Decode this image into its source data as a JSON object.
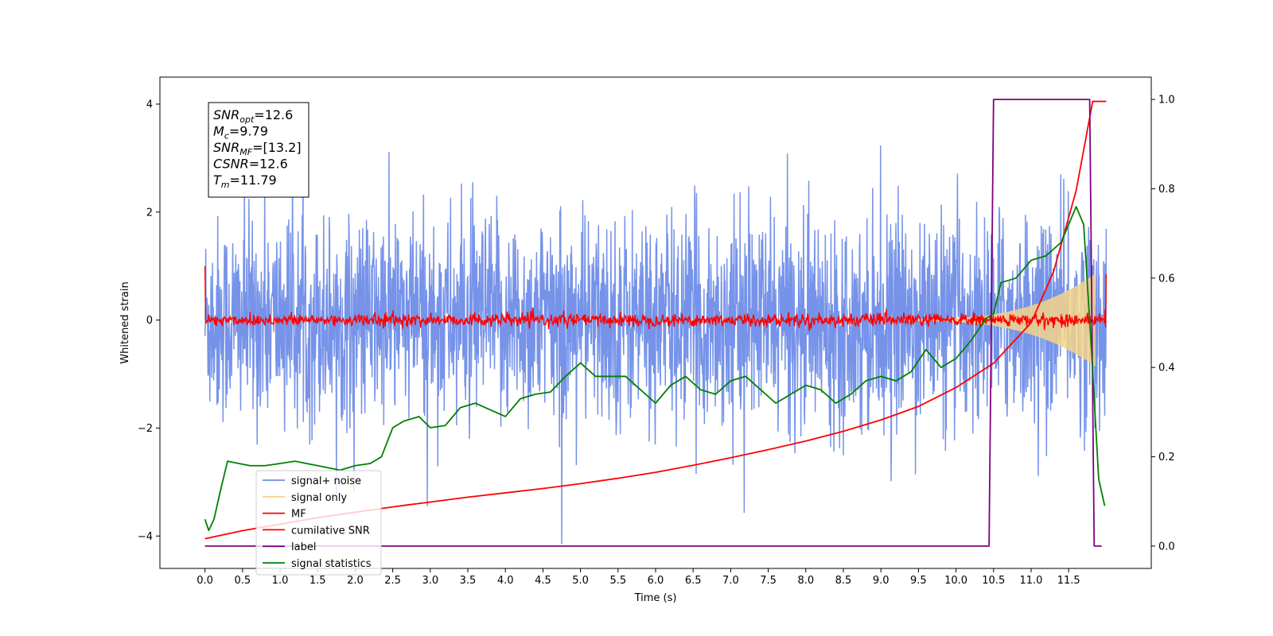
{
  "chart_data": {
    "type": "line",
    "title": "",
    "xlabel": "Time (s)",
    "ylabel": "Whitened strain",
    "y2label": "",
    "xlim": [
      -0.6,
      12.6
    ],
    "ylim": [
      -4.6,
      4.5
    ],
    "y2lim": [
      -0.05,
      1.05
    ],
    "xticks": [
      "0.0",
      "0.5",
      "1.0",
      "1.5",
      "2.0",
      "2.5",
      "3.0",
      "3.5",
      "4.0",
      "4.5",
      "5.0",
      "5.5",
      "6.0",
      "6.5",
      "7.0",
      "7.5",
      "8.0",
      "8.5",
      "9.0",
      "9.5",
      "10.0",
      "10.5",
      "11.0",
      "11.5"
    ],
    "yticks": [
      "4",
      "2",
      "0",
      "−2",
      "−4"
    ],
    "y2ticks": [
      "1.0",
      "0.8",
      "0.6",
      "0.4",
      "0.2",
      "0.0"
    ],
    "grid": false,
    "legend": {
      "placement": "lower-left",
      "entries": [
        {
          "name": "signal+ noise",
          "color": "#6f8de8"
        },
        {
          "name": "signal only",
          "color": "#f5d48a"
        },
        {
          "name": "MF",
          "color": "#ff0000"
        },
        {
          "name": "cumilative SNR",
          "color": "#ff0000"
        },
        {
          "name": "label",
          "color": "#800080"
        },
        {
          "name": "signal statistics",
          "color": "#008000"
        }
      ]
    },
    "annotation": [
      {
        "sym": "SNR",
        "sub": "opt",
        "val": "=12.6"
      },
      {
        "sym": "M",
        "sub": "c",
        "val": "=9.79"
      },
      {
        "sym": "SNR",
        "sub": "MF",
        "val": "=[13.2]"
      },
      {
        "sym": "CSNR",
        "sub": "",
        "val": "=12.6"
      },
      {
        "sym": "T",
        "sub": "m",
        "val": "=11.79"
      }
    ],
    "series": [
      {
        "name": "signal+ noise",
        "axis": "left",
        "color": "#6f8de8",
        "description_of_values": "white noise, amplitude mostly within [-2.6, 2.6], occasional peaks near +/-4",
        "t_start": 0.0,
        "t_end": 12.0,
        "envelope": [
          2.6,
          4.05
        ],
        "spike": {
          "x": 4.75,
          "y": -4.15
        }
      },
      {
        "name": "signal only",
        "axis": "left",
        "color": "#f5d48a",
        "t_start": 9.3,
        "t_end": 11.85,
        "amplitude_start": 0.02,
        "amplitude_end": 0.85
      },
      {
        "name": "MF",
        "axis": "left",
        "color": "#ff0000",
        "t_start": 0.0,
        "t_end": 12.0,
        "amplitude": 0.12,
        "start_value": 1.0,
        "end_value": 0.85
      },
      {
        "name": "cumilative SNR",
        "axis": "left",
        "color": "#ff0000",
        "x": [
          0.0,
          0.5,
          1.0,
          1.5,
          2.0,
          2.5,
          3.0,
          3.5,
          4.0,
          4.5,
          5.0,
          5.5,
          6.0,
          6.5,
          7.0,
          7.5,
          8.0,
          8.5,
          9.0,
          9.5,
          10.0,
          10.5,
          11.0,
          11.3,
          11.6,
          11.8,
          11.82,
          12.0
        ],
        "y": [
          -4.05,
          -3.9,
          -3.78,
          -3.66,
          -3.56,
          -3.46,
          -3.37,
          -3.28,
          -3.2,
          -3.12,
          -3.03,
          -2.93,
          -2.82,
          -2.69,
          -2.55,
          -2.4,
          -2.24,
          -2.06,
          -1.85,
          -1.6,
          -1.25,
          -0.8,
          -0.05,
          0.9,
          2.4,
          3.9,
          4.05,
          4.05
        ]
      },
      {
        "name": "label",
        "axis": "right",
        "color": "#800080",
        "x": [
          0.0,
          10.44,
          10.5,
          11.78,
          11.84,
          11.94
        ],
        "y": [
          0.0,
          0.0,
          1.0,
          1.0,
          0.0,
          0.0
        ]
      },
      {
        "name": "signal statistics",
        "axis": "right",
        "color": "#008000",
        "x": [
          0.0,
          0.05,
          0.12,
          0.2,
          0.3,
          0.45,
          0.6,
          0.8,
          1.0,
          1.2,
          1.5,
          1.8,
          2.0,
          2.2,
          2.35,
          2.5,
          2.65,
          2.85,
          3.0,
          3.2,
          3.4,
          3.6,
          3.8,
          4.0,
          4.2,
          4.4,
          4.6,
          4.8,
          5.0,
          5.2,
          5.4,
          5.6,
          5.8,
          6.0,
          6.2,
          6.4,
          6.6,
          6.8,
          7.0,
          7.2,
          7.4,
          7.6,
          7.8,
          8.0,
          8.2,
          8.4,
          8.6,
          8.8,
          9.0,
          9.2,
          9.4,
          9.6,
          9.8,
          10.0,
          10.2,
          10.4,
          10.5,
          10.6,
          10.8,
          11.0,
          11.2,
          11.4,
          11.5,
          11.6,
          11.7,
          11.8,
          11.9,
          11.98
        ],
        "y": [
          0.06,
          0.035,
          0.06,
          0.12,
          0.19,
          0.185,
          0.18,
          0.18,
          0.185,
          0.19,
          0.18,
          0.17,
          0.18,
          0.185,
          0.2,
          0.265,
          0.28,
          0.29,
          0.265,
          0.27,
          0.31,
          0.32,
          0.305,
          0.29,
          0.33,
          0.34,
          0.345,
          0.38,
          0.41,
          0.38,
          0.38,
          0.38,
          0.35,
          0.32,
          0.36,
          0.38,
          0.35,
          0.34,
          0.37,
          0.38,
          0.35,
          0.32,
          0.34,
          0.36,
          0.35,
          0.32,
          0.34,
          0.37,
          0.38,
          0.37,
          0.39,
          0.44,
          0.4,
          0.42,
          0.46,
          0.51,
          0.52,
          0.59,
          0.6,
          0.64,
          0.65,
          0.68,
          0.72,
          0.76,
          0.72,
          0.45,
          0.15,
          0.09
        ]
      }
    ]
  }
}
